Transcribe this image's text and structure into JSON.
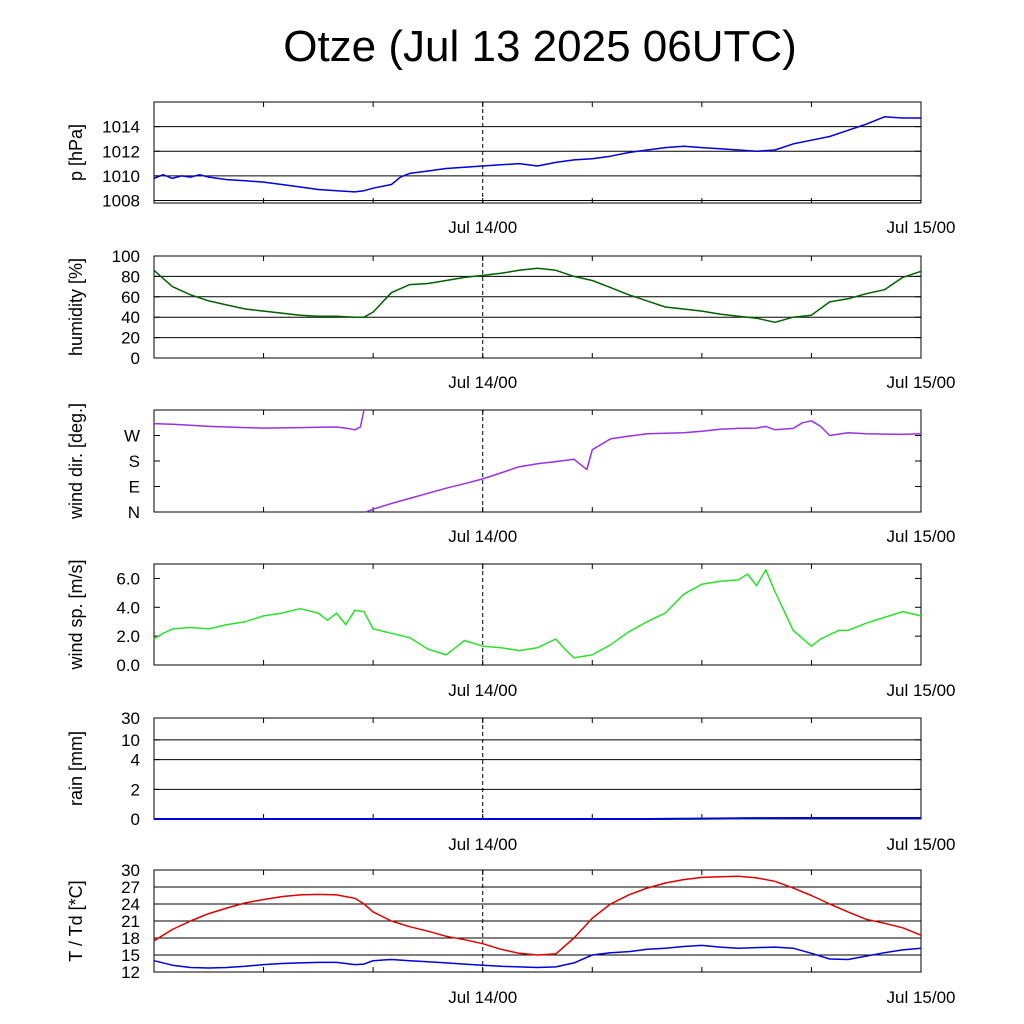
{
  "title": "Otze (Jul 13 2025 06UTC)",
  "chart_data": [
    {
      "id": "pressure",
      "type": "line",
      "ylabel": "p [hPa]",
      "ylim": [
        1007.8,
        1016
      ],
      "yticks": [
        1008,
        1010,
        1012,
        1014
      ],
      "gridlines": [
        1008,
        1010,
        1012,
        1014
      ],
      "xlim_hours": [
        0,
        42
      ],
      "x_ticks": [
        {
          "hour": 18,
          "label": "Jul 14/00"
        },
        {
          "hour": 42,
          "label": "Jul 15/00"
        }
      ],
      "series": [
        {
          "color": "#0000dd",
          "x": [
            0,
            0.5,
            1,
            1.5,
            2,
            2.5,
            3,
            4,
            5,
            6,
            7,
            8,
            9,
            10,
            11,
            11.5,
            12,
            13,
            13.5,
            14,
            15,
            16,
            17,
            18,
            19,
            20,
            21,
            22,
            23,
            24,
            25,
            26,
            27,
            28,
            29,
            30,
            31,
            32,
            33,
            34,
            35,
            36,
            37,
            38,
            39,
            40,
            41,
            42
          ],
          "y": [
            1009.8,
            1010.1,
            1009.8,
            1010.0,
            1009.9,
            1010.1,
            1009.9,
            1009.7,
            1009.6,
            1009.5,
            1009.3,
            1009.1,
            1008.9,
            1008.8,
            1008.7,
            1008.8,
            1009.0,
            1009.3,
            1009.9,
            1010.2,
            1010.4,
            1010.6,
            1010.7,
            1010.8,
            1010.9,
            1011.0,
            1010.8,
            1011.1,
            1011.3,
            1011.4,
            1011.6,
            1011.9,
            1012.1,
            1012.3,
            1012.4,
            1012.3,
            1012.2,
            1012.1,
            1012.0,
            1012.1,
            1012.6,
            1012.9,
            1013.2,
            1013.7,
            1014.2,
            1014.8,
            1014.7,
            1014.7
          ]
        }
      ]
    },
    {
      "id": "humidity",
      "type": "line",
      "ylabel": "humidity [%]",
      "ylim": [
        0,
        100
      ],
      "yticks": [
        0,
        20,
        40,
        60,
        80,
        100
      ],
      "gridlines": [
        0,
        20,
        40,
        60,
        80,
        100
      ],
      "xlim_hours": [
        0,
        42
      ],
      "x_ticks": [
        {
          "hour": 18,
          "label": "Jul 14/00"
        },
        {
          "hour": 42,
          "label": "Jul 15/00"
        }
      ],
      "series": [
        {
          "color": "#006000",
          "x": [
            0,
            1,
            2,
            3,
            4,
            5,
            6,
            7,
            8,
            9,
            10,
            11,
            11.5,
            12,
            13,
            14,
            15,
            16,
            17,
            18,
            19,
            20,
            21,
            22,
            23,
            24,
            25,
            26,
            27,
            28,
            29,
            30,
            31,
            32,
            33,
            34,
            35,
            36,
            37,
            38,
            39,
            40,
            41,
            42
          ],
          "y": [
            86,
            70,
            62,
            56,
            52,
            48,
            46,
            44,
            42,
            41,
            41,
            40,
            40,
            45,
            64,
            72,
            73,
            76,
            79,
            81,
            83,
            86,
            88,
            86,
            80,
            76,
            69,
            62,
            56,
            50,
            48,
            46,
            43,
            41,
            39,
            35,
            40,
            42,
            55,
            58,
            63,
            67,
            79,
            85
          ]
        }
      ]
    },
    {
      "id": "wind-direction",
      "type": "line",
      "ylabel": "wind dir. [deg.]",
      "ylim": [
        0,
        360
      ],
      "yticks": [
        0,
        90,
        180,
        270
      ],
      "ytick_labels": [
        "N",
        "E",
        "S",
        "W"
      ],
      "gridlines": [],
      "xlim_hours": [
        0,
        42
      ],
      "x_ticks": [
        {
          "hour": 18,
          "label": "Jul 14/00"
        },
        {
          "hour": 42,
          "label": "Jul 15/00"
        }
      ],
      "series": [
        {
          "color": "#9a30e6",
          "x": [
            0,
            1,
            2,
            3,
            4,
            5,
            6,
            7,
            8,
            9,
            10,
            10.5,
            11,
            11.3,
            11.5
          ],
          "y": [
            312,
            310,
            306,
            302,
            300,
            298,
            296,
            297,
            298,
            299,
            300,
            296,
            290,
            300,
            360
          ]
        },
        {
          "color": "#9a30e6",
          "x": [
            11.6,
            12,
            13,
            14,
            15,
            16,
            17,
            18,
            19,
            20,
            21,
            22,
            23,
            23.5,
            23.7,
            24,
            25,
            26,
            27,
            28,
            29,
            30,
            31,
            32,
            33,
            33.5,
            34,
            35,
            35.5,
            36,
            36.5,
            37,
            38,
            39,
            40,
            41,
            42
          ],
          "y": [
            0,
            10,
            30,
            48,
            66,
            84,
            100,
            117,
            138,
            160,
            170,
            178,
            186,
            160,
            150,
            220,
            258,
            268,
            276,
            278,
            280,
            285,
            292,
            295,
            296,
            302,
            290,
            295,
            315,
            322,
            302,
            270,
            280,
            276,
            275,
            274,
            276
          ]
        }
      ]
    },
    {
      "id": "wind-speed",
      "type": "line",
      "ylabel": "wind sp. [m/s]",
      "ylim": [
        0,
        7
      ],
      "yticks": [
        0,
        2,
        4,
        6
      ],
      "ytick_labels": [
        "0.0",
        "2.0",
        "4.0",
        "6.0"
      ],
      "gridlines": [],
      "xlim_hours": [
        0,
        42
      ],
      "x_ticks": [
        {
          "hour": 18,
          "label": "Jul 14/00"
        },
        {
          "hour": 42,
          "label": "Jul 15/00"
        }
      ],
      "series": [
        {
          "color": "#2ce02c",
          "x": [
            0,
            0.5,
            1,
            2,
            3,
            4,
            5,
            6,
            7,
            8,
            9,
            9.5,
            10,
            10.5,
            11,
            11.5,
            12,
            13,
            14,
            15,
            16,
            16.5,
            17,
            18,
            19,
            20,
            21,
            22,
            22.5,
            23,
            24,
            25,
            26,
            27,
            28,
            29,
            30,
            31,
            32,
            32.5,
            33,
            33.5,
            34,
            35,
            36,
            36.5,
            37,
            37.5,
            38,
            39,
            40,
            41,
            42
          ],
          "y": [
            1.8,
            2.2,
            2.5,
            2.6,
            2.5,
            2.8,
            3.0,
            3.4,
            3.6,
            3.9,
            3.6,
            3.1,
            3.6,
            2.8,
            3.8,
            3.7,
            2.5,
            2.2,
            1.9,
            1.1,
            0.7,
            1.2,
            1.7,
            1.3,
            1.2,
            1.0,
            1.2,
            1.8,
            1.1,
            0.5,
            0.7,
            1.4,
            2.3,
            3.0,
            3.6,
            4.9,
            5.6,
            5.8,
            5.9,
            6.3,
            5.5,
            6.6,
            5.1,
            2.4,
            1.3,
            1.8,
            2.1,
            2.4,
            2.4,
            2.9,
            3.3,
            3.7,
            3.4
          ]
        }
      ]
    },
    {
      "id": "rain",
      "type": "line",
      "ylabel": "rain [mm]",
      "ylim": [
        0,
        30
      ],
      "yticks": [
        0,
        2,
        4,
        10,
        30
      ],
      "gridlines": [
        0,
        2,
        4,
        10,
        30
      ],
      "scale": "nonlinear (0-2-4-10-30)",
      "xlim_hours": [
        0,
        42
      ],
      "x_ticks": [
        {
          "hour": 18,
          "label": "Jul 14/00"
        },
        {
          "hour": 42,
          "label": "Jul 15/00"
        }
      ],
      "series": [
        {
          "color": "#2ce02c",
          "x": [
            0,
            27,
            30,
            33,
            36,
            42
          ],
          "y": [
            0,
            0,
            0.02,
            0.05,
            0.06,
            0.06
          ]
        },
        {
          "color": "#0000dd",
          "x": [
            0,
            27,
            30,
            33,
            36,
            42
          ],
          "y": [
            0,
            0,
            0.03,
            0.06,
            0.07,
            0.07
          ]
        }
      ]
    },
    {
      "id": "temperature",
      "type": "line",
      "ylabel": "T / Td [*C]",
      "ylim": [
        12,
        30
      ],
      "yticks": [
        12,
        15,
        18,
        21,
        24,
        27,
        30
      ],
      "gridlines": [
        12,
        15,
        18,
        21,
        24,
        27,
        30
      ],
      "xlim_hours": [
        0,
        42
      ],
      "x_ticks": [
        {
          "hour": 18,
          "label": "Jul 14/00"
        },
        {
          "hour": 42,
          "label": "Jul 15/00"
        }
      ],
      "series": [
        {
          "color": "#e00000",
          "x": [
            0,
            1,
            2,
            3,
            4,
            5,
            6,
            7,
            8,
            9,
            10,
            11,
            11.5,
            12,
            13,
            14,
            15,
            16,
            17,
            18,
            19,
            20,
            21,
            22,
            23,
            24,
            25,
            26,
            27,
            28,
            29,
            30,
            31,
            32,
            33,
            34,
            35,
            36,
            37,
            38,
            39,
            40,
            41,
            42
          ],
          "y": [
            17.5,
            19.5,
            21,
            22.3,
            23.3,
            24.2,
            24.8,
            25.3,
            25.6,
            25.7,
            25.6,
            25.0,
            24.0,
            22.6,
            21.0,
            20.0,
            19.2,
            18.3,
            17.7,
            17.0,
            16.0,
            15.3,
            15.0,
            15.2,
            18.0,
            21.5,
            24.0,
            25.6,
            26.8,
            27.7,
            28.3,
            28.7,
            28.8,
            28.9,
            28.6,
            28.0,
            26.8,
            25.5,
            24.0,
            22.6,
            21.3,
            20.6,
            19.8,
            18.5
          ]
        },
        {
          "color": "#0000dd",
          "x": [
            0,
            1,
            2,
            3,
            4,
            5,
            6,
            7,
            8,
            9,
            10,
            11,
            11.5,
            12,
            13,
            14,
            15,
            16,
            17,
            18,
            19,
            20,
            21,
            22,
            23,
            24,
            25,
            26,
            27,
            28,
            29,
            30,
            31,
            32,
            33,
            34,
            35,
            36,
            37,
            38,
            39,
            40,
            41,
            42
          ],
          "y": [
            14.0,
            13.2,
            12.8,
            12.7,
            12.8,
            13.0,
            13.3,
            13.5,
            13.6,
            13.7,
            13.7,
            13.3,
            13.4,
            14.0,
            14.2,
            14.0,
            13.8,
            13.6,
            13.4,
            13.2,
            13.0,
            12.9,
            12.8,
            12.9,
            13.6,
            15.0,
            15.4,
            15.6,
            16.0,
            16.2,
            16.5,
            16.7,
            16.4,
            16.2,
            16.3,
            16.4,
            16.2,
            15.3,
            14.3,
            14.2,
            14.8,
            15.4,
            15.9,
            16.2
          ]
        }
      ]
    }
  ]
}
